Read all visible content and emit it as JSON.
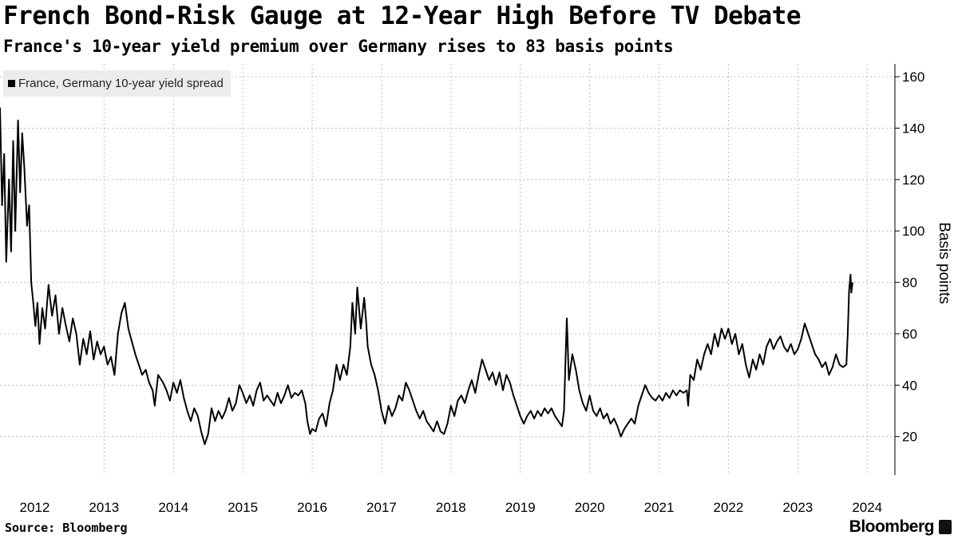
{
  "title": "French Bond-Risk Gauge at 12-Year High Before TV Debate",
  "subtitle": "France's 10-year yield premium over Germany rises to 83 basis points",
  "footer": {
    "source": "Source: Bloomberg",
    "brand": "Bloomberg"
  },
  "chart_data": {
    "type": "line",
    "series": [
      {
        "name": "France, Germany 10-year yield spread",
        "color": "#000000",
        "points": [
          [
            2011.5,
            148
          ],
          [
            2011.53,
            110
          ],
          [
            2011.56,
            130
          ],
          [
            2011.59,
            88
          ],
          [
            2011.63,
            120
          ],
          [
            2011.66,
            92
          ],
          [
            2011.69,
            135
          ],
          [
            2011.72,
            100
          ],
          [
            2011.76,
            143
          ],
          [
            2011.79,
            115
          ],
          [
            2011.82,
            138
          ],
          [
            2011.85,
            125
          ],
          [
            2011.89,
            102
          ],
          [
            2011.92,
            110
          ],
          [
            2011.95,
            80
          ],
          [
            2011.98,
            72
          ],
          [
            2012.01,
            63
          ],
          [
            2012.04,
            72
          ],
          [
            2012.07,
            56
          ],
          [
            2012.11,
            70
          ],
          [
            2012.15,
            62
          ],
          [
            2012.2,
            79
          ],
          [
            2012.25,
            67
          ],
          [
            2012.3,
            75
          ],
          [
            2012.35,
            60
          ],
          [
            2012.4,
            70
          ],
          [
            2012.45,
            63
          ],
          [
            2012.5,
            57
          ],
          [
            2012.55,
            66
          ],
          [
            2012.6,
            60
          ],
          [
            2012.65,
            48
          ],
          [
            2012.7,
            58
          ],
          [
            2012.75,
            52
          ],
          [
            2012.8,
            61
          ],
          [
            2012.85,
            50
          ],
          [
            2012.9,
            57
          ],
          [
            2012.95,
            52
          ],
          [
            2013.0,
            55
          ],
          [
            2013.05,
            48
          ],
          [
            2013.1,
            51
          ],
          [
            2013.15,
            44
          ],
          [
            2013.2,
            60
          ],
          [
            2013.25,
            68
          ],
          [
            2013.3,
            72
          ],
          [
            2013.35,
            62
          ],
          [
            2013.4,
            57
          ],
          [
            2013.45,
            52
          ],
          [
            2013.5,
            48
          ],
          [
            2013.55,
            44
          ],
          [
            2013.6,
            46
          ],
          [
            2013.65,
            41
          ],
          [
            2013.7,
            38
          ],
          [
            2013.73,
            32
          ],
          [
            2013.78,
            44
          ],
          [
            2013.85,
            41
          ],
          [
            2013.9,
            38
          ],
          [
            2013.95,
            34
          ],
          [
            2014.0,
            41
          ],
          [
            2014.05,
            37
          ],
          [
            2014.1,
            42
          ],
          [
            2014.15,
            35
          ],
          [
            2014.2,
            30
          ],
          [
            2014.25,
            26
          ],
          [
            2014.3,
            31
          ],
          [
            2014.35,
            28
          ],
          [
            2014.4,
            22
          ],
          [
            2014.45,
            17
          ],
          [
            2014.5,
            21
          ],
          [
            2014.55,
            31
          ],
          [
            2014.6,
            26
          ],
          [
            2014.65,
            30
          ],
          [
            2014.7,
            27
          ],
          [
            2014.75,
            30
          ],
          [
            2014.8,
            35
          ],
          [
            2014.85,
            30
          ],
          [
            2014.9,
            33
          ],
          [
            2014.95,
            40
          ],
          [
            2015.0,
            37
          ],
          [
            2015.05,
            33
          ],
          [
            2015.1,
            36
          ],
          [
            2015.15,
            32
          ],
          [
            2015.2,
            38
          ],
          [
            2015.25,
            41
          ],
          [
            2015.3,
            34
          ],
          [
            2015.35,
            36
          ],
          [
            2015.4,
            34
          ],
          [
            2015.45,
            32
          ],
          [
            2015.5,
            37
          ],
          [
            2015.55,
            33
          ],
          [
            2015.6,
            36
          ],
          [
            2015.65,
            40
          ],
          [
            2015.7,
            35
          ],
          [
            2015.75,
            37
          ],
          [
            2015.8,
            36
          ],
          [
            2015.85,
            38
          ],
          [
            2015.9,
            33
          ],
          [
            2015.93,
            26
          ],
          [
            2015.97,
            21
          ],
          [
            2016.0,
            23
          ],
          [
            2016.05,
            22
          ],
          [
            2016.1,
            27
          ],
          [
            2016.15,
            29
          ],
          [
            2016.2,
            24
          ],
          [
            2016.25,
            33
          ],
          [
            2016.3,
            38
          ],
          [
            2016.35,
            48
          ],
          [
            2016.4,
            42
          ],
          [
            2016.45,
            48
          ],
          [
            2016.5,
            44
          ],
          [
            2016.55,
            55
          ],
          [
            2016.58,
            72
          ],
          [
            2016.62,
            60
          ],
          [
            2016.65,
            78
          ],
          [
            2016.7,
            62
          ],
          [
            2016.75,
            74
          ],
          [
            2016.78,
            64
          ],
          [
            2016.8,
            55
          ],
          [
            2016.85,
            48
          ],
          [
            2016.9,
            44
          ],
          [
            2016.95,
            38
          ],
          [
            2017.0,
            30
          ],
          [
            2017.05,
            25
          ],
          [
            2017.1,
            32
          ],
          [
            2017.15,
            28
          ],
          [
            2017.2,
            31
          ],
          [
            2017.25,
            36
          ],
          [
            2017.3,
            34
          ],
          [
            2017.35,
            41
          ],
          [
            2017.4,
            38
          ],
          [
            2017.45,
            34
          ],
          [
            2017.5,
            30
          ],
          [
            2017.55,
            27
          ],
          [
            2017.6,
            30
          ],
          [
            2017.65,
            26
          ],
          [
            2017.7,
            24
          ],
          [
            2017.75,
            22
          ],
          [
            2017.8,
            26
          ],
          [
            2017.85,
            22
          ],
          [
            2017.9,
            21
          ],
          [
            2017.95,
            25
          ],
          [
            2018.0,
            32
          ],
          [
            2018.05,
            28
          ],
          [
            2018.1,
            34
          ],
          [
            2018.15,
            36
          ],
          [
            2018.2,
            33
          ],
          [
            2018.25,
            38
          ],
          [
            2018.3,
            42
          ],
          [
            2018.35,
            37
          ],
          [
            2018.4,
            44
          ],
          [
            2018.45,
            50
          ],
          [
            2018.5,
            46
          ],
          [
            2018.55,
            42
          ],
          [
            2018.6,
            45
          ],
          [
            2018.65,
            40
          ],
          [
            2018.7,
            45
          ],
          [
            2018.75,
            38
          ],
          [
            2018.8,
            44
          ],
          [
            2018.85,
            41
          ],
          [
            2018.9,
            36
          ],
          [
            2018.95,
            32
          ],
          [
            2019.0,
            28
          ],
          [
            2019.05,
            25
          ],
          [
            2019.1,
            28
          ],
          [
            2019.15,
            30
          ],
          [
            2019.2,
            27
          ],
          [
            2019.25,
            30
          ],
          [
            2019.3,
            28
          ],
          [
            2019.35,
            31
          ],
          [
            2019.4,
            29
          ],
          [
            2019.45,
            31
          ],
          [
            2019.5,
            28
          ],
          [
            2019.55,
            26
          ],
          [
            2019.6,
            24
          ],
          [
            2019.63,
            30
          ],
          [
            2019.65,
            48
          ],
          [
            2019.67,
            66
          ],
          [
            2019.7,
            42
          ],
          [
            2019.75,
            52
          ],
          [
            2019.8,
            46
          ],
          [
            2019.85,
            38
          ],
          [
            2019.9,
            33
          ],
          [
            2019.95,
            30
          ],
          [
            2020.0,
            36
          ],
          [
            2020.05,
            30
          ],
          [
            2020.1,
            28
          ],
          [
            2020.15,
            31
          ],
          [
            2020.2,
            27
          ],
          [
            2020.25,
            29
          ],
          [
            2020.3,
            25
          ],
          [
            2020.35,
            27
          ],
          [
            2020.4,
            24
          ],
          [
            2020.45,
            20
          ],
          [
            2020.5,
            23
          ],
          [
            2020.55,
            25
          ],
          [
            2020.6,
            27
          ],
          [
            2020.65,
            25
          ],
          [
            2020.7,
            32
          ],
          [
            2020.75,
            36
          ],
          [
            2020.8,
            40
          ],
          [
            2020.85,
            37
          ],
          [
            2020.9,
            35
          ],
          [
            2020.95,
            34
          ],
          [
            2021.0,
            36
          ],
          [
            2021.05,
            34
          ],
          [
            2021.1,
            37
          ],
          [
            2021.15,
            35
          ],
          [
            2021.2,
            38
          ],
          [
            2021.25,
            36
          ],
          [
            2021.3,
            38
          ],
          [
            2021.35,
            37
          ],
          [
            2021.4,
            38
          ],
          [
            2021.42,
            32
          ],
          [
            2021.45,
            44
          ],
          [
            2021.5,
            42
          ],
          [
            2021.55,
            50
          ],
          [
            2021.6,
            46
          ],
          [
            2021.65,
            52
          ],
          [
            2021.7,
            56
          ],
          [
            2021.75,
            52
          ],
          [
            2021.8,
            60
          ],
          [
            2021.85,
            55
          ],
          [
            2021.9,
            62
          ],
          [
            2021.95,
            58
          ],
          [
            2022.0,
            62
          ],
          [
            2022.05,
            56
          ],
          [
            2022.1,
            60
          ],
          [
            2022.15,
            52
          ],
          [
            2022.2,
            56
          ],
          [
            2022.25,
            48
          ],
          [
            2022.3,
            43
          ],
          [
            2022.35,
            50
          ],
          [
            2022.4,
            46
          ],
          [
            2022.45,
            52
          ],
          [
            2022.5,
            48
          ],
          [
            2022.55,
            55
          ],
          [
            2022.6,
            58
          ],
          [
            2022.65,
            54
          ],
          [
            2022.7,
            57
          ],
          [
            2022.75,
            59
          ],
          [
            2022.8,
            55
          ],
          [
            2022.85,
            53
          ],
          [
            2022.9,
            56
          ],
          [
            2022.95,
            52
          ],
          [
            2023.0,
            54
          ],
          [
            2023.05,
            58
          ],
          [
            2023.1,
            64
          ],
          [
            2023.15,
            60
          ],
          [
            2023.2,
            56
          ],
          [
            2023.25,
            52
          ],
          [
            2023.3,
            50
          ],
          [
            2023.35,
            47
          ],
          [
            2023.4,
            49
          ],
          [
            2023.45,
            44
          ],
          [
            2023.5,
            47
          ],
          [
            2023.55,
            52
          ],
          [
            2023.6,
            48
          ],
          [
            2023.65,
            47
          ],
          [
            2023.7,
            48
          ],
          [
            2023.72,
            60
          ],
          [
            2023.74,
            77
          ],
          [
            2023.76,
            83
          ],
          [
            2023.77,
            76
          ],
          [
            2023.79,
            80
          ]
        ]
      }
    ],
    "x_ticks": [
      {
        "value": 2012,
        "label": "2012"
      },
      {
        "value": 2013,
        "label": "2013"
      },
      {
        "value": 2014,
        "label": "2014"
      },
      {
        "value": 2015,
        "label": "2015"
      },
      {
        "value": 2016,
        "label": "2016"
      },
      {
        "value": 2017,
        "label": "2017"
      },
      {
        "value": 2018,
        "label": "2018"
      },
      {
        "value": 2019,
        "label": "2019"
      },
      {
        "value": 2020,
        "label": "2020"
      },
      {
        "value": 2021,
        "label": "2021"
      },
      {
        "value": 2022,
        "label": "2022"
      },
      {
        "value": 2023,
        "label": "2023"
      },
      {
        "value": 2024,
        "label": "2024"
      }
    ],
    "y_ticks": [
      {
        "value": 20,
        "label": "20"
      },
      {
        "value": 40,
        "label": "40"
      },
      {
        "value": 60,
        "label": "60"
      },
      {
        "value": 80,
        "label": "80"
      },
      {
        "value": 100,
        "label": "100"
      },
      {
        "value": 120,
        "label": "120"
      },
      {
        "value": 140,
        "label": "140"
      },
      {
        "value": 160,
        "label": "160"
      }
    ],
    "xlim": [
      2011.5,
      2024.4
    ],
    "ylim": [
      5,
      165
    ],
    "ylabel": "Basis points",
    "y_axis_side": "right",
    "grid": "dotted",
    "legend_position": "top-left"
  }
}
